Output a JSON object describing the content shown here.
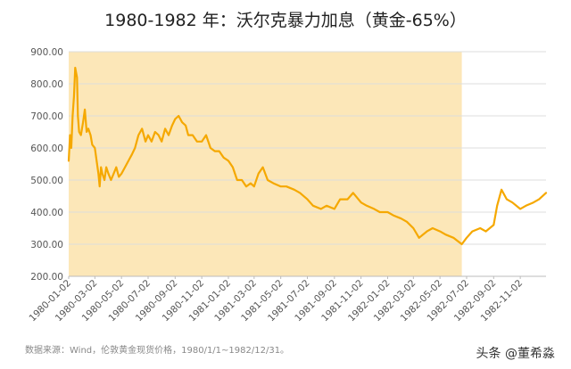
{
  "title": "1980-1982 年：沃尔克暴力加息（黄金-65%）",
  "source": "数据来源：Wind，伦敦黄金现货价格，1980/1/1~1982/12/31。",
  "watermark": "头条 @董希淼",
  "colors": {
    "line": "#F5A800",
    "band": "#FCE7B8",
    "grid": "#DDDDDD",
    "axis": "#BBBBBB"
  },
  "chart_data": {
    "type": "line",
    "title": "1980-1982 年：沃尔克暴力加息（黄金-65%）",
    "xlabel": "",
    "ylabel": "",
    "x_tick_labels": [
      "1980-01-02",
      "1980-03-02",
      "1980-05-02",
      "1980-07-02",
      "1980-09-02",
      "1980-11-02",
      "1981-01-02",
      "1981-03-02",
      "1981-05-02",
      "1981-07-02",
      "1981-09-02",
      "1981-11-02",
      "1982-01-02",
      "1982-03-02",
      "1982-05-02",
      "1982-07-02",
      "1982-09-02",
      "1982-11-02"
    ],
    "y_tick_labels": [
      "200.00",
      "300.00",
      "400.00",
      "500.00",
      "600.00",
      "700.00",
      "800.00",
      "900.00"
    ],
    "ylim": [
      200,
      900
    ],
    "xlim": [
      "1980-01-02",
      "1982-12-31"
    ],
    "grid": "horizontal",
    "highlight_range": [
      "1980-01-02",
      "1982-06-21"
    ],
    "series": [
      {
        "x": [
          "1980-01-02",
          "1980-01-05",
          "1980-01-08",
          "1980-01-11",
          "1980-01-14",
          "1980-01-17",
          "1980-01-21",
          "1980-01-23",
          "1980-01-26",
          "1980-01-30",
          "1980-02-04",
          "1980-02-08",
          "1980-02-12",
          "1980-02-16",
          "1980-02-21",
          "1980-02-25",
          "1980-03-02",
          "1980-03-06",
          "1980-03-10",
          "1980-03-13",
          "1980-03-16",
          "1980-03-19",
          "1980-03-24",
          "1980-03-28",
          "1980-04-02",
          "1980-04-08",
          "1980-04-14",
          "1980-04-20",
          "1980-04-26",
          "1980-05-02",
          "1980-05-10",
          "1980-05-18",
          "1980-05-26",
          "1980-06-02",
          "1980-06-10",
          "1980-06-18",
          "1980-06-26",
          "1980-07-02",
          "1980-07-10",
          "1980-07-18",
          "1980-07-26",
          "1980-08-02",
          "1980-08-10",
          "1980-08-18",
          "1980-08-26",
          "1980-09-02",
          "1980-09-10",
          "1980-09-18",
          "1980-09-26",
          "1980-10-02",
          "1980-10-12",
          "1980-10-22",
          "1980-11-02",
          "1980-11-12",
          "1980-11-22",
          "1980-12-02",
          "1980-12-12",
          "1980-12-22",
          "1981-01-02",
          "1981-01-12",
          "1981-01-22",
          "1981-02-02",
          "1981-02-12",
          "1981-02-22",
          "1981-03-02",
          "1981-03-12",
          "1981-03-22",
          "1981-04-02",
          "1981-04-15",
          "1981-05-02",
          "1981-05-15",
          "1981-06-02",
          "1981-06-15",
          "1981-07-02",
          "1981-07-15",
          "1981-08-02",
          "1981-08-15",
          "1981-09-02",
          "1981-09-15",
          "1981-10-02",
          "1981-10-15",
          "1981-11-02",
          "1981-11-15",
          "1981-12-02",
          "1981-12-15",
          "1982-01-02",
          "1982-01-15",
          "1982-02-02",
          "1982-02-15",
          "1982-03-02",
          "1982-03-15",
          "1982-04-02",
          "1982-04-15",
          "1982-05-02",
          "1982-05-15",
          "1982-06-02",
          "1982-06-21",
          "1982-07-02",
          "1982-07-15",
          "1982-08-02",
          "1982-08-15",
          "1982-09-02",
          "1982-09-10",
          "1982-09-20",
          "1982-10-02",
          "1982-10-15",
          "1982-11-02",
          "1982-11-15",
          "1982-12-02",
          "1982-12-15",
          "1982-12-31"
        ],
        "values": [
          560,
          640,
          600,
          700,
          760,
          850,
          820,
          700,
          650,
          640,
          680,
          720,
          650,
          660,
          640,
          610,
          600,
          560,
          520,
          480,
          540,
          520,
          500,
          540,
          520,
          500,
          520,
          540,
          510,
          520,
          540,
          560,
          580,
          600,
          640,
          660,
          620,
          640,
          620,
          650,
          640,
          620,
          660,
          640,
          670,
          690,
          700,
          680,
          670,
          640,
          640,
          620,
          620,
          640,
          600,
          590,
          590,
          570,
          560,
          540,
          500,
          500,
          480,
          490,
          480,
          520,
          540,
          500,
          490,
          480,
          480,
          470,
          460,
          440,
          420,
          410,
          420,
          410,
          440,
          440,
          460,
          430,
          420,
          410,
          400,
          400,
          390,
          380,
          370,
          350,
          320,
          340,
          350,
          340,
          330,
          320,
          300,
          320,
          340,
          350,
          340,
          360,
          420,
          470,
          440,
          430,
          410,
          420,
          430,
          440,
          460
        ]
      }
    ]
  }
}
